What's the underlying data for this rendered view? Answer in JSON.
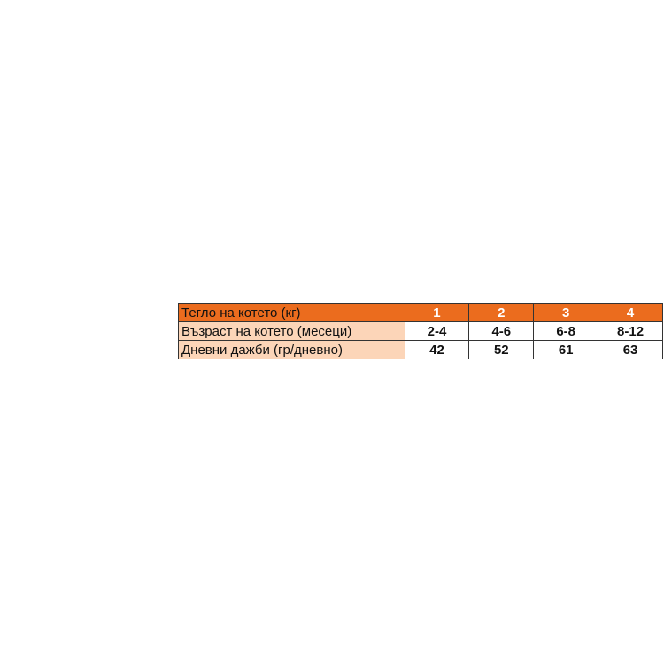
{
  "table": {
    "rows": [
      {
        "label": "Тегло на котето (кг)",
        "values": [
          "1",
          "2",
          "3",
          "4"
        ]
      },
      {
        "label": "Възраст на котето (месеци)",
        "values": [
          "2-4",
          "4-6",
          "6-8",
          "8-12"
        ]
      },
      {
        "label": "Дневни дажби (гр/дневно)",
        "values": [
          "42",
          "52",
          "61",
          "63"
        ]
      }
    ]
  },
  "colors": {
    "header": "#eb6c1e",
    "label_cell": "#fcd5b8"
  }
}
